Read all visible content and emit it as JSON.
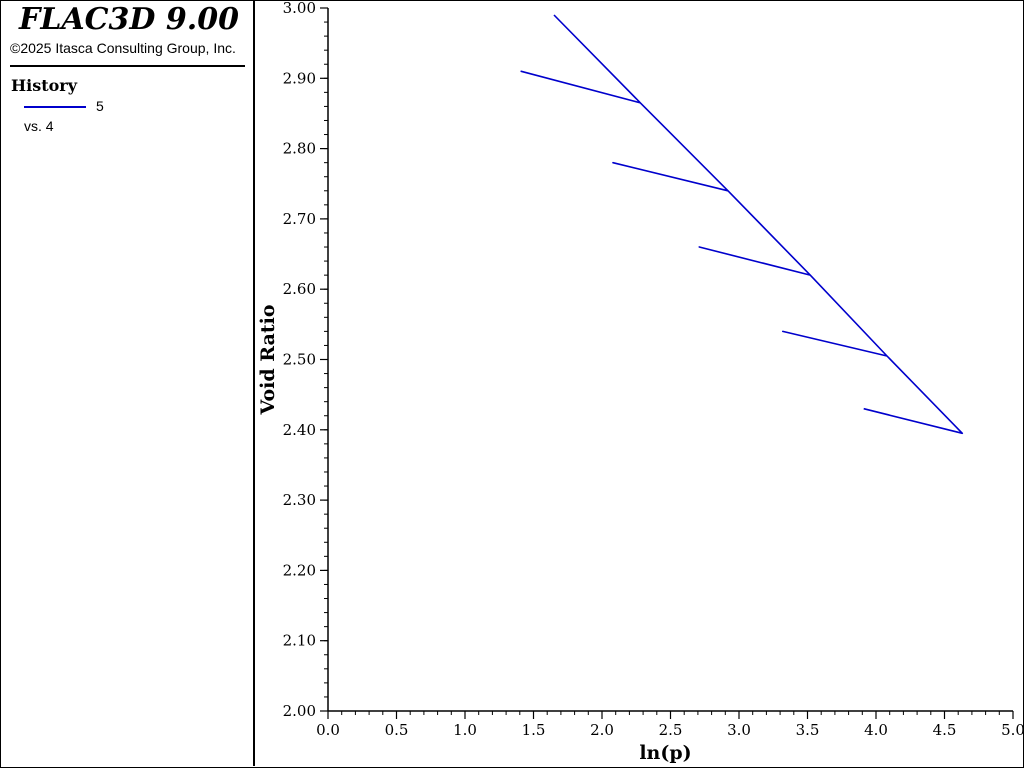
{
  "app": {
    "title": "FLAC3D 9.00",
    "copyright": "©2025 Itasca Consulting Group, Inc."
  },
  "legend": {
    "heading": "History",
    "entries": [
      {
        "label": "5",
        "vs_label": "vs. 4",
        "color": "#0000cc"
      }
    ]
  },
  "chart_data": {
    "type": "line",
    "title": "",
    "xlabel": "ln(p)",
    "ylabel": "Void Ratio",
    "xlim": [
      0.0,
      5.0
    ],
    "ylim": [
      2.0,
      3.0
    ],
    "x_ticks": [
      "0.0",
      "0.5",
      "1.0",
      "1.5",
      "2.0",
      "2.5",
      "3.0",
      "3.5",
      "4.0",
      "4.5",
      "5.0"
    ],
    "y_ticks": [
      "2.00",
      "2.10",
      "2.20",
      "2.30",
      "2.40",
      "2.50",
      "2.60",
      "2.70",
      "2.80",
      "2.90",
      "3.00"
    ],
    "grid": false,
    "series": [
      {
        "name": "5",
        "color": "#0000cc",
        "x": [
          1.65,
          2.28,
          1.41,
          2.28,
          2.92,
          2.08,
          2.92,
          3.52,
          2.71,
          3.52,
          4.08,
          3.32,
          4.08,
          4.63,
          3.91
        ],
        "y": [
          2.99,
          2.865,
          2.91,
          2.865,
          2.74,
          2.78,
          2.74,
          2.62,
          2.66,
          2.62,
          2.505,
          2.54,
          2.505,
          2.395,
          2.43
        ]
      }
    ]
  }
}
